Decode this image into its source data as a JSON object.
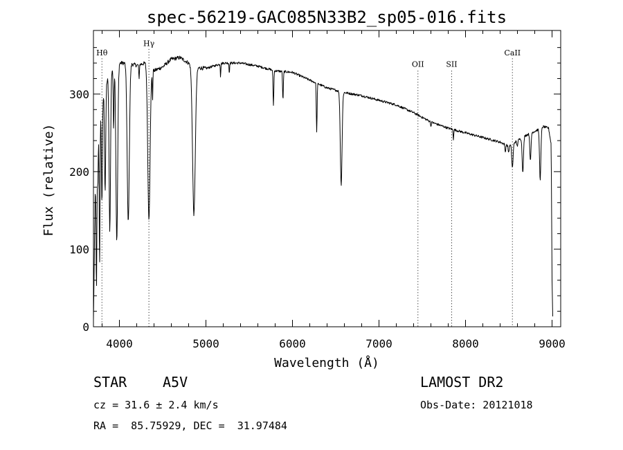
{
  "chart_data": {
    "type": "line",
    "title": "spec-56219-GAC085N33B2_sp05-016.fits",
    "xlabel": "Wavelength (Å)",
    "ylabel": "Flux (relative)",
    "xlim": [
      3700,
      9100
    ],
    "ylim": [
      0,
      382
    ],
    "grid": false,
    "x_ticks": [
      4000,
      5000,
      6000,
      7000,
      8000,
      9000
    ],
    "y_ticks": [
      0,
      100,
      200,
      300
    ],
    "x_tick_labels": [
      "4000",
      "5000",
      "6000",
      "7000",
      "8000",
      "9000"
    ],
    "y_tick_labels": [
      "0",
      "100",
      "200",
      "300"
    ],
    "continuum": [
      [
        3700,
        8
      ],
      [
        3720,
        170
      ],
      [
        3760,
        250
      ],
      [
        3800,
        290
      ],
      [
        3850,
        315
      ],
      [
        3900,
        330
      ],
      [
        3950,
        335
      ],
      [
        4000,
        340
      ],
      [
        4100,
        340
      ],
      [
        4200,
        337
      ],
      [
        4300,
        340
      ],
      [
        4400,
        330
      ],
      [
        4500,
        335
      ],
      [
        4600,
        345
      ],
      [
        4700,
        347
      ],
      [
        4800,
        340
      ],
      [
        4900,
        334
      ],
      [
        5000,
        333
      ],
      [
        5200,
        340
      ],
      [
        5400,
        340
      ],
      [
        5600,
        336
      ],
      [
        5800,
        330
      ],
      [
        6000,
        328
      ],
      [
        6200,
        318
      ],
      [
        6400,
        308
      ],
      [
        6600,
        302
      ],
      [
        6800,
        298
      ],
      [
        7000,
        292
      ],
      [
        7200,
        286
      ],
      [
        7400,
        276
      ],
      [
        7600,
        264
      ],
      [
        7800,
        256
      ],
      [
        8000,
        250
      ],
      [
        8200,
        244
      ],
      [
        8400,
        238
      ],
      [
        8500,
        233
      ],
      [
        8600,
        240
      ],
      [
        8700,
        247
      ],
      [
        8800,
        252
      ],
      [
        8900,
        258
      ],
      [
        8960,
        256
      ],
      [
        8990,
        235
      ],
      [
        9000,
        60
      ],
      [
        9010,
        2
      ]
    ],
    "absorption_lines": [
      {
        "wavelength": 3735,
        "flux": 45,
        "width": 8
      },
      {
        "wavelength": 3750,
        "flux": 180,
        "width": 8
      },
      {
        "wavelength": 3771,
        "flux": 75,
        "width": 8
      },
      {
        "wavelength": 3798,
        "flux": 160,
        "width": 10
      },
      {
        "wavelength": 3835,
        "flux": 175,
        "width": 12
      },
      {
        "wavelength": 3889,
        "flux": 125,
        "width": 15
      },
      {
        "wavelength": 3933,
        "flux": 255,
        "width": 8
      },
      {
        "wavelength": 3970,
        "flux": 110,
        "width": 18
      },
      {
        "wavelength": 4102,
        "flux": 135,
        "width": 22
      },
      {
        "wavelength": 4227,
        "flux": 318,
        "width": 6
      },
      {
        "wavelength": 4341,
        "flux": 140,
        "width": 24
      },
      {
        "wavelength": 4383,
        "flux": 293,
        "width": 6
      },
      {
        "wavelength": 4861,
        "flux": 145,
        "width": 28
      },
      {
        "wavelength": 5169,
        "flux": 322,
        "width": 5
      },
      {
        "wavelength": 5270,
        "flux": 325,
        "width": 5
      },
      {
        "wavelength": 5780,
        "flux": 285,
        "width": 8
      },
      {
        "wavelength": 5890,
        "flux": 292,
        "width": 8
      },
      {
        "wavelength": 6280,
        "flux": 250,
        "width": 8
      },
      {
        "wavelength": 6563,
        "flux": 183,
        "width": 18
      },
      {
        "wavelength": 7600,
        "flux": 258,
        "width": 6
      },
      {
        "wavelength": 7860,
        "flux": 242,
        "width": 6
      },
      {
        "wavelength": 8460,
        "flux": 225,
        "width": 8
      },
      {
        "wavelength": 8498,
        "flux": 225,
        "width": 10
      },
      {
        "wavelength": 8542,
        "flux": 205,
        "width": 14
      },
      {
        "wavelength": 8598,
        "flux": 233,
        "width": 10
      },
      {
        "wavelength": 8662,
        "flux": 200,
        "width": 14
      },
      {
        "wavelength": 8750,
        "flux": 213,
        "width": 12
      },
      {
        "wavelength": 8863,
        "flux": 190,
        "width": 14
      }
    ],
    "annotations": [
      {
        "label": "Hθ",
        "wavelength": 3798,
        "y": 350,
        "line_top": 346
      },
      {
        "label": "Hγ",
        "wavelength": 4341,
        "y": 362,
        "line_top": 358
      },
      {
        "label": "OII",
        "wavelength": 7450,
        "y": 335,
        "line_top": 330
      },
      {
        "label": "SII",
        "wavelength": 7840,
        "y": 335,
        "line_top": 330
      },
      {
        "label": "CaII",
        "wavelength": 8542,
        "y": 350,
        "line_top": 346
      }
    ]
  },
  "info": {
    "object_type": "STAR",
    "spectral_class": "A5V",
    "survey": "LAMOST DR2",
    "redshift": "cz = 31.6 ± 2.4 km/s",
    "obs_date": "Obs-Date: 20121018",
    "coordinates": "RA =  85.75929, DEC =  31.97484"
  },
  "colors": {
    "line": "#000000",
    "axes": "#000000",
    "background": "#ffffff"
  }
}
